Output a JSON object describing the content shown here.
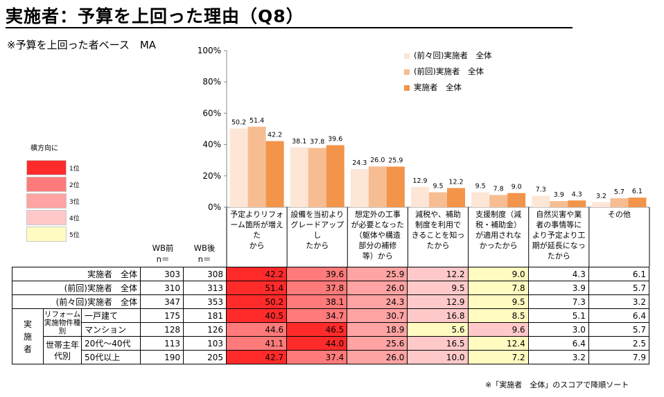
{
  "title": "実施者：予算を上回った理由（Q8）",
  "subtitle": "※予算を上回った者ベース　MA",
  "footnote": "※「実施者　全体」のスコアで降順ソート",
  "rank_legend": {
    "title": "横方向に",
    "items": [
      {
        "label": "1位",
        "color": "#ff2b2b"
      },
      {
        "label": "2位",
        "color": "#ff7a7a"
      },
      {
        "label": "3位",
        "color": "#ffa3a3"
      },
      {
        "label": "4位",
        "color": "#ffc9ca"
      },
      {
        "label": "5位",
        "color": "#fffbc1"
      }
    ]
  },
  "table_headers": {
    "before_label": "WB前",
    "before_n": "n＝",
    "after_label": "WB後",
    "after_n": "n＝"
  },
  "chart_data": {
    "type": "bar",
    "ylim": [
      0,
      100
    ],
    "yticks": [
      "0%",
      "20%",
      "40%",
      "60%",
      "80%",
      "100%"
    ],
    "categories": [
      "予定よりリフォーム箇所が増えたから",
      "設備を当初よりグレードアップしたから",
      "想定外の工事が必要となった（躯体や構造部分の補修等）から",
      "減税や、補助制度を利用できることを知ったから",
      "支援制度（減税・補助金）が適用されなかったから",
      "自然災害や業者の事情等により予定より工期が延長になったから",
      "その他"
    ],
    "category_lines": [
      [
        "予定よりリフォ",
        "ーム箇所が増えた",
        "から"
      ],
      [
        "設備を当初より",
        "グレードアップし",
        "たから"
      ],
      [
        "想定外の工事",
        "が必要となった",
        "（躯体や構造",
        "部分の補修",
        "等）から"
      ],
      [
        "減税や、補助",
        "制度を利用で",
        "きることを知っ",
        "たから"
      ],
      [
        "支援制度（減",
        "税・補助金）",
        "が適用されな",
        "かったから"
      ],
      [
        "自然災害や業",
        "者の事情等に",
        "より予定より工",
        "期が延長になっ",
        "たから"
      ],
      [
        "その他"
      ]
    ],
    "series": [
      {
        "name": "(前々回)実施者　全体",
        "color": "#fde6d6",
        "values": [
          50.2,
          38.1,
          24.3,
          12.9,
          9.5,
          7.3,
          3.2
        ],
        "labels": [
          "50.2",
          "38.1",
          "24.3",
          "12.9",
          "9.5",
          "7.3",
          "3.2"
        ]
      },
      {
        "name": "(前回)実施者　全体",
        "color": "#f7bd92",
        "values": [
          51.4,
          37.8,
          26.0,
          9.5,
          7.8,
          3.9,
          5.7
        ],
        "labels": [
          "51.4",
          "37.8",
          "26.0",
          "9.5",
          "7.8",
          "3.9",
          "5.7"
        ]
      },
      {
        "name": "実施者　全体",
        "color": "#f2944a",
        "values": [
          42.2,
          39.6,
          25.9,
          12.2,
          9.0,
          4.3,
          6.1
        ],
        "labels": [
          "42.2",
          "39.6",
          "25.9",
          "12.2",
          "9.0",
          "4.3",
          "6.1"
        ]
      }
    ]
  },
  "rows": [
    {
      "group": "",
      "sub": "",
      "label": "実施者　全体",
      "n_before": "303",
      "n_after": "308",
      "values": [
        "42.2",
        "39.6",
        "25.9",
        "12.2",
        "9.0",
        "4.3",
        "6.1"
      ],
      "ranks": [
        1,
        2,
        3,
        4,
        5,
        0,
        0
      ]
    },
    {
      "group": "",
      "sub": "",
      "label": "(前回)実施者　全体",
      "n_before": "310",
      "n_after": "313",
      "values": [
        "51.4",
        "37.8",
        "26.0",
        "9.5",
        "7.8",
        "3.9",
        "5.7"
      ],
      "ranks": [
        1,
        2,
        3,
        4,
        5,
        0,
        0
      ]
    },
    {
      "group": "",
      "sub": "",
      "label": "(前々回)実施者　全体",
      "n_before": "347",
      "n_after": "353",
      "values": [
        "50.2",
        "38.1",
        "24.3",
        "12.9",
        "9.5",
        "7.3",
        "3.2"
      ],
      "ranks": [
        1,
        2,
        3,
        4,
        5,
        0,
        0
      ]
    },
    {
      "group": "実施者",
      "sub": "リフォーム実施物件種別",
      "label": "一戸建て",
      "n_before": "175",
      "n_after": "181",
      "values": [
        "40.5",
        "34.7",
        "30.7",
        "16.8",
        "8.5",
        "5.1",
        "6.4"
      ],
      "ranks": [
        1,
        2,
        3,
        4,
        5,
        0,
        0
      ]
    },
    {
      "group": "実施者",
      "sub": "リフォーム実施物件種別",
      "label": "マンション",
      "n_before": "128",
      "n_after": "126",
      "values": [
        "44.6",
        "46.5",
        "18.9",
        "5.6",
        "9.6",
        "3.0",
        "5.7"
      ],
      "ranks": [
        2,
        1,
        3,
        5,
        4,
        0,
        0
      ]
    },
    {
      "group": "実施者",
      "sub": "世帯主年代別",
      "label": "20代～40代",
      "n_before": "113",
      "n_after": "103",
      "values": [
        "41.1",
        "44.0",
        "25.6",
        "16.5",
        "12.4",
        "6.4",
        "2.5"
      ],
      "ranks": [
        2,
        1,
        3,
        4,
        5,
        0,
        0
      ]
    },
    {
      "group": "実施者",
      "sub": "世帯主年代別",
      "label": "50代以上",
      "n_before": "190",
      "n_after": "205",
      "values": [
        "42.7",
        "37.4",
        "26.0",
        "10.0",
        "7.2",
        "3.2",
        "7.9"
      ],
      "ranks": [
        1,
        2,
        3,
        4,
        5,
        0,
        0
      ]
    }
  ],
  "row_groups": {
    "group_label": "実施者",
    "sub1_label": "リフォーム実施物件種別",
    "sub2_label": "世帯主年代別"
  }
}
